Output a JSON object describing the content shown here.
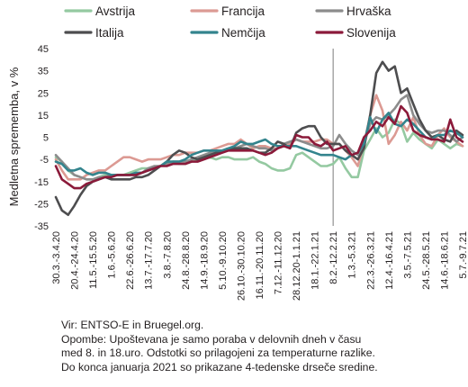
{
  "chart_data": {
    "type": "line",
    "title": "",
    "xlabel": "",
    "ylabel": "Medletna sprememba, v %",
    "ylim": [
      -35,
      45
    ],
    "yticks": [
      -35,
      -25,
      -15,
      -5,
      5,
      15,
      25,
      35,
      45
    ],
    "vline_at": "8.2.-12.2.21",
    "legend_position": "top",
    "x": [
      "30.3.-3.4.20",
      "6.4.-10.4.20",
      "13.4.-17.4.20",
      "20.4.-24.4.20",
      "27.4.-1.5.20",
      "4.5.-8.5.20",
      "11.5.-15.5.20",
      "18.5.-22.5.20",
      "25.5.-29.5.20",
      "1.6.-5.6.20",
      "8.6.-12.6.20",
      "15.6.-19.6.20",
      "22.6.-26.6.20",
      "29.6.-3.7.20",
      "6.7.-10.7.20",
      "13.7.-17.7.20",
      "20.7.-24.7.20",
      "27.7.-31.7.20",
      "3.8.-7.8.20",
      "10.8.-14.8.20",
      "17.8.-21.8.20",
      "24.8.-28.8.20",
      "31.8.-4.9.20",
      "7.9.-11.9.20",
      "14.9.-18.9.20",
      "21.9.-25.9.20",
      "28.9.-2.10.20",
      "5.10.-9.10.20",
      "12.10.-16.10.20",
      "19.10.-23.10.20",
      "26.10.-30.10.20",
      "2.11.-6.11.20",
      "9.11.-13.11.20",
      "16.11.-20.11.20",
      "23.11.-27.11.20",
      "30.11.-4.12.20",
      "7.12.-11.12.20",
      "14.12.-18.12.20",
      "21.12.-25.12.20",
      "28.12.20-1.1.21",
      "4.1.-8.1.21",
      "11.1.-15.1.21",
      "18.1.-22.1.21",
      "25.1.-29.1.21",
      "1.2.-5.2.21",
      "8.2.-12.2.21",
      "15.2.-19.2.21",
      "22.2.-26.2.21",
      "1.3.-5.3.21",
      "8.3.-12.3.21",
      "15.3.-19.3.21",
      "22.3.-26.3.21",
      "29.3.-2.4.21",
      "5.4.-9.4.21",
      "12.4.-16.4.21",
      "19.4.-23.4.21",
      "26.4.-30.4.21",
      "3.5.-7.5.21",
      "10.5.-14.5.21",
      "17.5.-21.5.21",
      "24.5.-28.5.21",
      "31.5.-4.6.21",
      "7.6.-11.6.21",
      "14.6.-18.6.21",
      "21.6.-25.6.21",
      "28.6.-2.7.21",
      "5.7.-9.7.21"
    ],
    "x_tick_labels": [
      "30.3.-3.4.20",
      "20.4.-24.4.20",
      "11.5.-15.5.20",
      "1.6.-5.6.20",
      "22.6.-26.6.20",
      "13.7.-17.7.20",
      "3.8.-7.8.20",
      "24.8.-28.8.20",
      "14.9.-18.9.20",
      "5.10.-9.10.20",
      "26.10.-30.10.20",
      "16.11.-20.11.20",
      "7.12.-11.12.20",
      "28.12.20-1.1.21",
      "18.1.-22.1.21",
      "8.2.-12.2.21",
      "1.3.-5.3.21",
      "22.3.-26.3.21",
      "12.4.-16.4.21",
      "3.5.-7.5.21",
      "24.5.-28.5.21",
      "14.6.-18.6.21",
      "5.7.-9.7.21"
    ],
    "series": [
      {
        "name": "Avstrija",
        "color": "#94c9a1",
        "values": [
          -4,
          -6,
          -10,
          -12,
          -13,
          -14,
          -14,
          -13,
          -12,
          -12,
          -12,
          -12,
          -11,
          -10,
          -9,
          -9,
          -9,
          -8,
          -7,
          -6,
          -7,
          -7,
          -6,
          -5,
          -5,
          -4,
          -5,
          -4,
          -4,
          -5,
          -5,
          -5,
          -4,
          -6,
          -7,
          -9,
          -10,
          -10,
          -9,
          -3,
          -2,
          -4,
          -6,
          -8,
          -8,
          -7,
          -4,
          -9,
          -13,
          -13,
          -1,
          4,
          9,
          5,
          7,
          13,
          11,
          3,
          7,
          4,
          2,
          0,
          4,
          2,
          0,
          2,
          1
        ]
      },
      {
        "name": "Francija",
        "color": "#dc9a93",
        "values": [
          -5,
          -10,
          -14,
          -14,
          -14,
          -12,
          -11,
          -10,
          -10,
          -8,
          -6,
          -4,
          -4,
          -5,
          -6,
          -5,
          -5,
          -5,
          -4,
          -3,
          -3,
          -2,
          -2,
          -2,
          -1,
          -1,
          0,
          1,
          2,
          2,
          4,
          2,
          0,
          1,
          1,
          0,
          0,
          1,
          2,
          4,
          3,
          3,
          3,
          4,
          4,
          2,
          2,
          -1,
          -4,
          -8,
          2,
          15,
          24,
          17,
          2,
          6,
          12,
          8,
          14,
          6,
          2,
          1,
          6,
          9,
          5,
          3,
          1
        ]
      },
      {
        "name": "Hrvaška",
        "color": "#8c8c8c",
        "values": [
          -3,
          -6,
          -9,
          -12,
          -13,
          -14,
          -14,
          -13,
          -13,
          -12,
          -12,
          -12,
          -12,
          -12,
          -11,
          -9,
          -8,
          -8,
          -7,
          -6,
          -6,
          -6,
          -5,
          -4,
          -3,
          -2,
          -2,
          -1,
          0,
          0,
          1,
          2,
          1,
          0,
          0,
          -1,
          0,
          2,
          3,
          4,
          3,
          2,
          1,
          0,
          0,
          1,
          6,
          2,
          -1,
          -3,
          2,
          11,
          14,
          13,
          15,
          18,
          22,
          24,
          15,
          11,
          8,
          7,
          8,
          8,
          6,
          3,
          5
        ]
      },
      {
        "name": "Italija",
        "color": "#4d4d4f",
        "values": [
          -22,
          -28,
          -30,
          -26,
          -21,
          -17,
          -15,
          -14,
          -13,
          -14,
          -14,
          -14,
          -14,
          -13,
          -13,
          -12,
          -10,
          -8,
          -6,
          -3,
          -1,
          -2,
          -4,
          -5,
          -4,
          -3,
          -2,
          -1,
          0,
          0,
          0,
          0,
          -1,
          -2,
          -2,
          0,
          3,
          2,
          0,
          7,
          9,
          10,
          10,
          5,
          2,
          2,
          2,
          -1,
          -3,
          -5,
          0,
          15,
          34,
          39,
          35,
          37,
          25,
          27,
          20,
          13,
          8,
          5,
          6,
          4,
          3,
          8,
          6
        ]
      },
      {
        "name": "Nemčija",
        "color": "#33848d",
        "values": [
          -6,
          -7,
          -10,
          -10,
          -9,
          -11,
          -12,
          -11,
          -11,
          -12,
          -12,
          -12,
          -12,
          -11,
          -11,
          -10,
          -9,
          -8,
          -6,
          -6,
          -6,
          -5,
          -3,
          -2,
          -1,
          -1,
          -1,
          -1,
          0,
          1,
          3,
          2,
          2,
          3,
          4,
          2,
          1,
          1,
          1,
          1,
          0,
          -1,
          -2,
          -3,
          -3,
          -3,
          -4,
          -5,
          -3,
          -2,
          2,
          14,
          7,
          13,
          16,
          11,
          10,
          13,
          11,
          8,
          5,
          4,
          6,
          6,
          8,
          7,
          5
        ]
      },
      {
        "name": "Slovenija",
        "color": "#8b1a3a",
        "values": [
          -8,
          -14,
          -16,
          -18,
          -18,
          -16,
          -15,
          -14,
          -13,
          -13,
          -12,
          -12,
          -12,
          -12,
          -11,
          -10,
          -9,
          -8,
          -8,
          -7,
          -7,
          -7,
          -6,
          -6,
          -5,
          -4,
          -3,
          -2,
          -1,
          -1,
          -1,
          -1,
          -1,
          -2,
          -3,
          -2,
          0,
          1,
          0,
          6,
          5,
          5,
          2,
          1,
          3,
          -1,
          0,
          1,
          -3,
          -2,
          5,
          8,
          12,
          10,
          14,
          11,
          19,
          16,
          8,
          6,
          5,
          4,
          4,
          3,
          13,
          5,
          3
        ]
      }
    ]
  },
  "notes": {
    "source": "Vir: ENTSO-E in Bruegel.org.",
    "line1": "Opombe: Upoštevana je samo poraba v delovnih dneh v času",
    "line2": "med 8. in 18.uro. Odstotki so prilagojeni za temperaturne razlike.",
    "line3": "Do konca januarja 2021 so prikazane 4-tedenske drseče sredine."
  }
}
